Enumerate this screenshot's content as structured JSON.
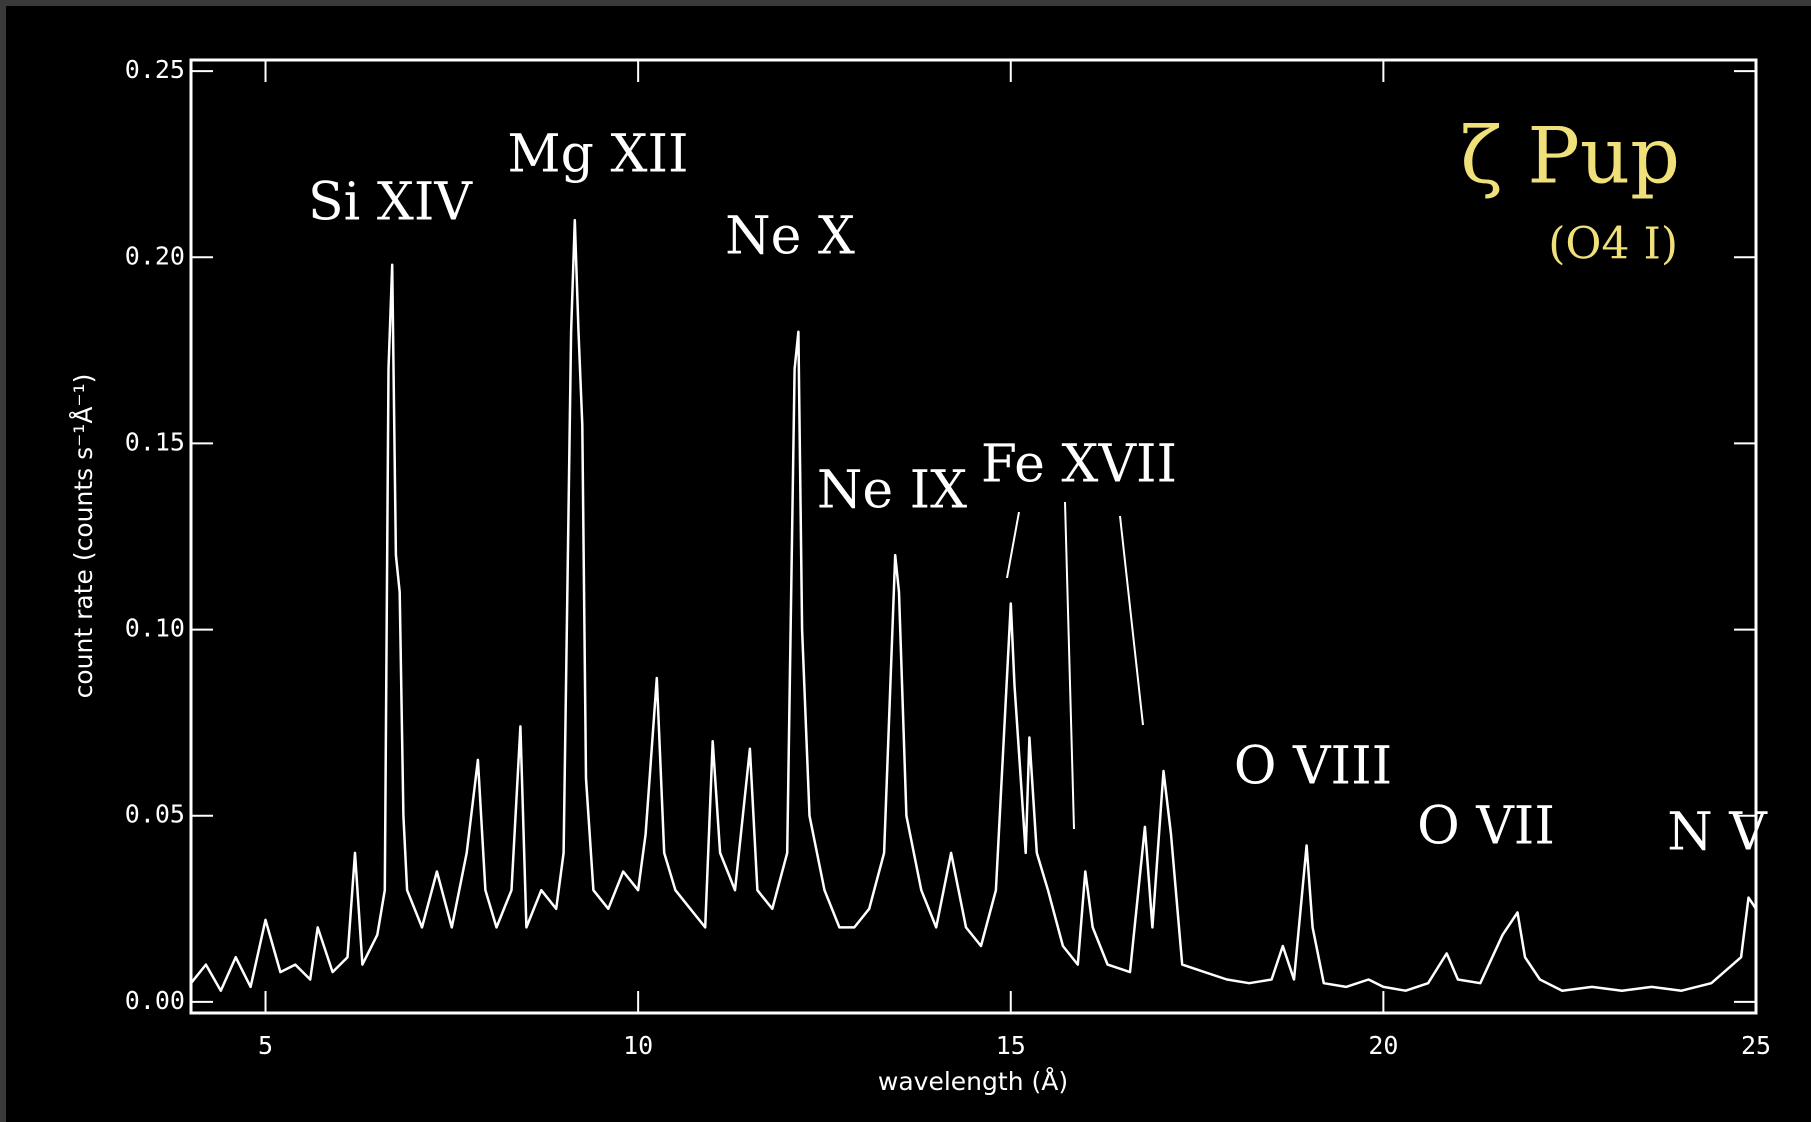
{
  "chart_data": {
    "type": "line",
    "title": "ζ Pup",
    "subtitle": "(O4 I)",
    "x_label": "wavelength (Å)",
    "y_label": "count rate (counts s⁻¹Å⁻¹)",
    "annotations": [
      "Si XIV",
      "Mg XII",
      "Ne X",
      "Ne IX",
      "Fe XVII",
      "O VIII",
      "O VII",
      "N V"
    ],
    "xlim": [
      4,
      25
    ],
    "ylim": [
      -0.003,
      0.253
    ],
    "xticks": [
      5,
      10,
      15,
      20,
      25
    ],
    "yticks": [
      {
        "value": 0,
        "label": "0.00"
      },
      {
        "value": 0.05,
        "label": "0.05"
      },
      {
        "value": 0.1,
        "label": "0.10"
      },
      {
        "value": 0.15,
        "label": "0.15"
      },
      {
        "value": 0.2,
        "label": "0.20"
      },
      {
        "value": 0.25,
        "label": "0.25"
      }
    ],
    "series": [
      {
        "color": "#ffffff",
        "x": [
          4.0,
          4.2,
          4.4,
          4.6,
          4.8,
          5.0,
          5.2,
          5.4,
          5.6,
          5.7,
          5.9,
          6.1,
          6.2,
          6.3,
          6.5,
          6.6,
          6.65,
          6.7,
          6.75,
          6.8,
          6.85,
          6.9,
          7.1,
          7.3,
          7.5,
          7.7,
          7.85,
          7.95,
          8.1,
          8.3,
          8.42,
          8.5,
          8.7,
          8.9,
          9.0,
          9.1,
          9.15,
          9.2,
          9.25,
          9.3,
          9.4,
          9.6,
          9.8,
          10.0,
          10.1,
          10.25,
          10.35,
          10.5,
          10.7,
          10.9,
          11.0,
          11.1,
          11.2,
          11.3,
          11.5,
          11.6,
          11.8,
          12.0,
          12.1,
          12.15,
          12.2,
          12.3,
          12.5,
          12.7,
          12.9,
          13.1,
          13.3,
          13.45,
          13.5,
          13.6,
          13.8,
          14.0,
          14.2,
          14.4,
          14.6,
          14.8,
          15.0,
          15.05,
          15.2,
          15.25,
          15.35,
          15.5,
          15.7,
          15.9,
          16.0,
          16.1,
          16.3,
          16.6,
          16.8,
          16.9,
          17.05,
          17.15,
          17.3,
          17.6,
          17.9,
          18.2,
          18.5,
          18.65,
          18.8,
          18.97,
          19.05,
          19.2,
          19.5,
          19.8,
          20.0,
          20.3,
          20.6,
          20.85,
          21.0,
          21.3,
          21.6,
          21.8,
          21.9,
          22.1,
          22.4,
          22.8,
          23.2,
          23.6,
          24.0,
          24.4,
          24.8,
          24.9,
          25.0
        ],
        "values": [
          0.005,
          0.01,
          0.003,
          0.012,
          0.004,
          0.022,
          0.008,
          0.01,
          0.006,
          0.02,
          0.008,
          0.012,
          0.04,
          0.01,
          0.018,
          0.03,
          0.17,
          0.198,
          0.12,
          0.11,
          0.05,
          0.03,
          0.02,
          0.035,
          0.02,
          0.04,
          0.065,
          0.03,
          0.02,
          0.03,
          0.074,
          0.02,
          0.03,
          0.025,
          0.04,
          0.18,
          0.21,
          0.18,
          0.155,
          0.06,
          0.03,
          0.025,
          0.035,
          0.03,
          0.045,
          0.087,
          0.04,
          0.03,
          0.025,
          0.02,
          0.07,
          0.04,
          0.035,
          0.03,
          0.068,
          0.03,
          0.025,
          0.04,
          0.17,
          0.18,
          0.1,
          0.05,
          0.03,
          0.02,
          0.02,
          0.025,
          0.04,
          0.12,
          0.11,
          0.05,
          0.03,
          0.02,
          0.04,
          0.02,
          0.015,
          0.03,
          0.107,
          0.085,
          0.04,
          0.071,
          0.04,
          0.03,
          0.015,
          0.01,
          0.035,
          0.02,
          0.01,
          0.008,
          0.047,
          0.02,
          0.062,
          0.045,
          0.01,
          0.008,
          0.006,
          0.005,
          0.006,
          0.015,
          0.006,
          0.042,
          0.02,
          0.005,
          0.004,
          0.006,
          0.004,
          0.003,
          0.005,
          0.013,
          0.006,
          0.005,
          0.018,
          0.024,
          0.012,
          0.006,
          0.003,
          0.004,
          0.003,
          0.004,
          0.003,
          0.005,
          0.012,
          0.028,
          0.025
        ]
      }
    ]
  }
}
